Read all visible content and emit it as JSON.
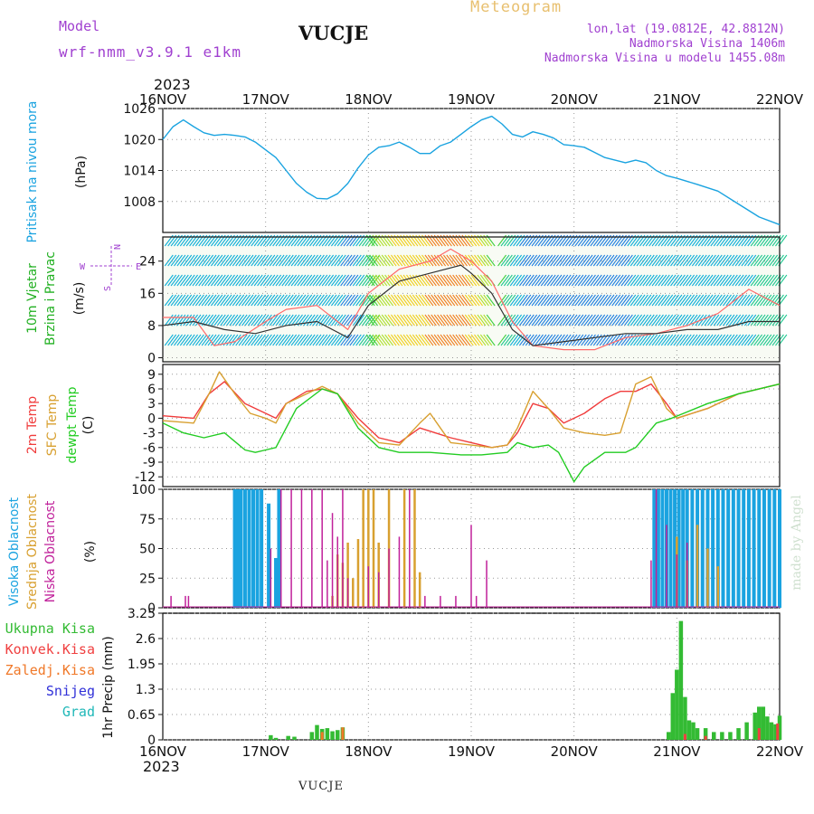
{
  "header": {
    "model_label": "Model",
    "model_name": "wrf-nmm_v3.9.1 e1km",
    "station": "VUCJE",
    "product": "Meteogram",
    "coords": "lon,lat (19.0812E, 42.8812N)",
    "altitude": "Nadmorska Visina 1406m",
    "model_altitude": "Nadmorska Visina u modelu 1455.08m",
    "year_top": "2023",
    "year_bottom": "2023",
    "footer_station": "VUCJE",
    "credit": "made by Angel"
  },
  "colors": {
    "pressure": "#1aa3e0",
    "wind_label": "#22b022",
    "temp2m": "#f03c3c",
    "sfc": "#d8a030",
    "dewpt": "#22cc22",
    "high_cloud": "#1aa3e0",
    "mid_cloud": "#d8a030",
    "low_cloud": "#c0209a",
    "total_precip": "#33bb33",
    "conv_precip": "#f04040",
    "frz_precip": "#f07828",
    "snow": "#3030d8",
    "hail": "#20b8b8",
    "header_purple": "#a040d0",
    "header_gold": "#e8c070"
  },
  "chart_data": [
    {
      "id": "pressure",
      "type": "line",
      "ylabel_main": "Pritisak na nivou mora",
      "unit": "(hPa)",
      "x_ticks": [
        "16NOV",
        "17NOV",
        "18NOV",
        "19NOV",
        "20NOV",
        "21NOV",
        "22NOV"
      ],
      "ylim": [
        1002,
        1026
      ],
      "y_ticks": [
        1008,
        1014,
        1020,
        1026
      ],
      "series": [
        {
          "x": [
            0,
            0.1,
            0.2,
            0.3,
            0.4,
            0.5,
            0.6,
            0.7,
            0.8,
            0.9,
            1.0,
            1.1,
            1.2,
            1.3,
            1.4,
            1.5,
            1.6,
            1.7,
            1.8,
            1.9,
            2.0,
            2.1,
            2.2,
            2.3,
            2.4,
            2.5,
            2.6,
            2.7,
            2.8,
            2.9,
            3.0,
            3.1,
            3.2,
            3.3,
            3.4,
            3.5,
            3.6,
            3.7,
            3.8,
            3.9,
            4.0,
            4.1,
            4.2,
            4.3,
            4.4,
            4.5,
            4.6,
            4.7,
            4.8,
            4.9,
            5.0,
            5.2,
            5.4,
            5.6,
            5.8,
            6.0
          ],
          "values": [
            1020.0,
            1022.5,
            1023.8,
            1022.5,
            1021.3,
            1020.8,
            1021.0,
            1020.8,
            1020.5,
            1019.5,
            1018.0,
            1016.5,
            1014.0,
            1011.5,
            1009.8,
            1008.6,
            1008.5,
            1009.5,
            1011.5,
            1014.5,
            1017.0,
            1018.5,
            1018.8,
            1019.5,
            1018.5,
            1017.3,
            1017.3,
            1018.8,
            1019.5,
            1021.0,
            1022.5,
            1023.8,
            1024.5,
            1023.0,
            1021.0,
            1020.5,
            1021.5,
            1021.0,
            1020.3,
            1019.0,
            1018.8,
            1018.5,
            1017.5,
            1016.5,
            1016.0,
            1015.5,
            1016.0,
            1015.5,
            1014.0,
            1013.0,
            1012.5,
            1011.3,
            1010.0,
            1007.5,
            1005.0,
            1003.5
          ]
        }
      ]
    },
    {
      "id": "wind",
      "type": "line",
      "ylabel_main": "10m Vjetar",
      "ylabel_sub": "Brzina i Pravac",
      "unit": "(m/s)",
      "compass": {
        "n": "N",
        "w": "W",
        "e": "E",
        "s": "S"
      },
      "ylim": [
        -1,
        30
      ],
      "y_ticks": [
        0,
        8,
        16,
        24
      ],
      "series": [
        {
          "name": "speed",
          "color": "#333333",
          "x": [
            0,
            0.3,
            0.6,
            0.9,
            1.2,
            1.5,
            1.8,
            2.0,
            2.3,
            2.6,
            2.9,
            3.0,
            3.2,
            3.4,
            3.6,
            3.9,
            4.2,
            4.5,
            4.8,
            5.1,
            5.4,
            5.7,
            6.0
          ],
          "values": [
            8,
            9,
            7,
            6,
            8,
            9,
            5,
            13,
            19,
            21,
            23,
            21,
            16,
            7,
            3,
            4,
            5,
            6,
            6,
            7,
            7,
            9,
            9
          ]
        },
        {
          "name": "gust",
          "color": "#ff6a6a",
          "x": [
            0,
            0.3,
            0.5,
            0.7,
            1.0,
            1.2,
            1.5,
            1.8,
            2.0,
            2.3,
            2.6,
            2.8,
            3.0,
            3.2,
            3.4,
            3.6,
            3.9,
            4.2,
            4.5,
            4.8,
            5.1,
            5.4,
            5.7,
            6.0
          ],
          "values": [
            10,
            10,
            3,
            4,
            9,
            12,
            13,
            7,
            16,
            22,
            24,
            27,
            24,
            19,
            9,
            3,
            2,
            2,
            5,
            6,
            8,
            11,
            17,
            13
          ]
        }
      ]
    },
    {
      "id": "temperature",
      "type": "line",
      "labels": [
        "2m Temp",
        "SFC Temp",
        "dewpt Temp"
      ],
      "unit": "(C)",
      "ylim": [
        -14,
        11
      ],
      "y_ticks": [
        -12,
        -9,
        -6,
        -3,
        0,
        3,
        6,
        9
      ],
      "series": [
        {
          "name": "2m Temp",
          "color": "#f03c3c",
          "x": [
            0,
            0.3,
            0.45,
            0.6,
            0.8,
            1.0,
            1.1,
            1.2,
            1.4,
            1.55,
            1.7,
            1.9,
            2.1,
            2.3,
            2.5,
            2.65,
            2.8,
            3.0,
            3.2,
            3.35,
            3.45,
            3.6,
            3.75,
            3.9,
            4.1,
            4.3,
            4.45,
            4.6,
            4.75,
            4.9,
            5.0,
            5.3,
            5.6,
            6.0
          ],
          "values": [
            0.5,
            0,
            5,
            7.5,
            3,
            1,
            0,
            3,
            5.5,
            6,
            5,
            0,
            -4,
            -5,
            -2,
            -3,
            -4,
            -5,
            -6,
            -5.5,
            -3,
            3,
            2,
            -1,
            1,
            4,
            5.5,
            5.5,
            7,
            3,
            0,
            2,
            5,
            7
          ]
        },
        {
          "name": "SFC Temp",
          "color": "#d8a030",
          "x": [
            0,
            0.3,
            0.45,
            0.55,
            0.7,
            0.85,
            1.0,
            1.1,
            1.2,
            1.4,
            1.55,
            1.7,
            1.9,
            2.1,
            2.3,
            2.5,
            2.6,
            2.7,
            2.8,
            3.0,
            3.2,
            3.35,
            3.45,
            3.6,
            3.75,
            3.9,
            4.1,
            4.3,
            4.45,
            4.6,
            4.75,
            4.9,
            5.0,
            5.3,
            5.6,
            6.0
          ],
          "values": [
            -0.5,
            -1,
            5,
            9.5,
            5,
            1,
            0,
            -1,
            3,
            5,
            6.5,
            5,
            -1,
            -5,
            -5.5,
            -1,
            1,
            -2,
            -5,
            -5.5,
            -6,
            -5.5,
            -2,
            5.5,
            2,
            -2,
            -3,
            -3.5,
            -3,
            7,
            8.5,
            2,
            0,
            2,
            5,
            7
          ]
        },
        {
          "name": "dewpt Temp",
          "color": "#22cc22",
          "x": [
            0,
            0.2,
            0.4,
            0.6,
            0.8,
            0.9,
            1.0,
            1.1,
            1.3,
            1.55,
            1.7,
            1.9,
            2.1,
            2.3,
            2.6,
            2.9,
            3.1,
            3.35,
            3.45,
            3.6,
            3.75,
            3.85,
            4.0,
            4.1,
            4.3,
            4.5,
            4.6,
            4.8,
            4.95,
            5.3,
            5.6,
            6.0
          ],
          "values": [
            -1,
            -3,
            -4,
            -3,
            -6.5,
            -7,
            -6.5,
            -6,
            2,
            6,
            5,
            -2,
            -6,
            -7,
            -7,
            -7.5,
            -7.5,
            -7,
            -5,
            -6,
            -5.5,
            -7,
            -13,
            -10,
            -7,
            -7,
            -6,
            -1,
            0,
            3,
            5,
            7
          ]
        }
      ]
    },
    {
      "id": "clouds",
      "type": "bar",
      "labels": [
        "Visoka Oblacnost",
        "Srednja Oblacnost",
        "Niska Oblacnost"
      ],
      "unit": "(%)",
      "ylim": [
        0,
        100
      ],
      "y_ticks": [
        0,
        25,
        50,
        75,
        100
      ],
      "series": [
        {
          "name": "Visoka Oblacnost",
          "color": "#1aa3e0",
          "x": [
            0.7,
            0.73,
            0.76,
            0.8,
            0.84,
            0.88,
            0.92,
            0.96,
            1.03,
            1.1,
            1.13,
            4.78,
            4.82,
            4.86,
            4.9,
            4.94,
            4.98,
            5.02,
            5.06,
            5.1,
            5.15,
            5.2,
            5.25,
            5.3,
            5.35,
            5.4,
            5.45,
            5.5,
            5.55,
            5.6,
            5.65,
            5.7,
            5.75,
            5.8,
            5.85,
            5.9,
            5.95,
            6.0
          ],
          "values": [
            100,
            100,
            100,
            100,
            100,
            100,
            100,
            100,
            88,
            42,
            100,
            100,
            100,
            100,
            100,
            100,
            100,
            100,
            100,
            100,
            100,
            100,
            100,
            100,
            100,
            100,
            100,
            100,
            100,
            100,
            100,
            100,
            100,
            100,
            100,
            100,
            100,
            100
          ]
        },
        {
          "name": "Srednja Oblacnost",
          "color": "#d8a030",
          "x": [
            1.65,
            1.7,
            1.75,
            1.8,
            1.85,
            1.9,
            1.95,
            2.0,
            2.05,
            2.1,
            2.2,
            2.35,
            2.45,
            2.5,
            5.0,
            5.1,
            5.2,
            5.3,
            5.4
          ],
          "values": [
            10,
            45,
            38,
            55,
            25,
            58,
            100,
            100,
            100,
            55,
            100,
            100,
            100,
            30,
            60,
            40,
            70,
            50,
            35
          ]
        },
        {
          "name": "Niska Oblacnost",
          "color": "#c0209a",
          "x": [
            0.08,
            0.22,
            0.25,
            1.05,
            1.15,
            1.25,
            1.35,
            1.45,
            1.55,
            1.6,
            1.65,
            1.7,
            1.75,
            1.8,
            2.0,
            2.1,
            2.2,
            2.3,
            2.4,
            2.55,
            2.7,
            2.85,
            3.0,
            3.05,
            3.15,
            4.75,
            4.8,
            4.9,
            5.0,
            5.1
          ],
          "values": [
            10,
            10,
            10,
            50,
            100,
            100,
            100,
            100,
            100,
            40,
            80,
            60,
            100,
            25,
            35,
            30,
            50,
            60,
            100,
            10,
            10,
            10,
            70,
            10,
            40,
            40,
            100,
            70,
            45,
            55
          ]
        }
      ]
    },
    {
      "id": "precip",
      "type": "bar",
      "labels": [
        "Ukupna Kisa",
        "Konvek.Kisa",
        "Zaledj.Kisa",
        "Snijeg",
        "Grad"
      ],
      "unit": "1hr Precip (mm)",
      "ylim": [
        0,
        3.25
      ],
      "y_ticks": [
        0,
        0.65,
        1.3,
        1.95,
        2.6,
        3.25
      ],
      "series": [
        {
          "name": "Ukupna Kisa",
          "color": "#33bb33",
          "x": [
            1.05,
            1.1,
            1.22,
            1.28,
            1.45,
            1.5,
            1.55,
            1.6,
            1.65,
            1.7,
            1.75,
            4.92,
            4.96,
            5.0,
            5.04,
            5.08,
            5.12,
            5.16,
            5.2,
            5.28,
            5.36,
            5.44,
            5.52,
            5.6,
            5.68,
            5.76,
            5.8,
            5.84,
            5.88,
            5.92,
            5.96,
            6.0
          ],
          "values": [
            0.12,
            0.05,
            0.1,
            0.08,
            0.2,
            0.38,
            0.28,
            0.3,
            0.22,
            0.25,
            0.32,
            0.2,
            1.2,
            1.8,
            3.05,
            1.1,
            0.5,
            0.45,
            0.3,
            0.3,
            0.2,
            0.2,
            0.2,
            0.3,
            0.45,
            0.7,
            0.85,
            0.85,
            0.6,
            0.45,
            0.4,
            0.62
          ]
        },
        {
          "name": "Konvek.Kisa",
          "color": "#f04040",
          "x": [
            5.08,
            5.28,
            5.8,
            5.98
          ],
          "values": [
            0.15,
            0.1,
            0.3,
            0.42
          ]
        },
        {
          "name": "Zaledj.Kisa",
          "color": "#f07828",
          "x": [
            1.55,
            1.75
          ],
          "values": [
            0.2,
            0.32
          ]
        }
      ]
    }
  ]
}
